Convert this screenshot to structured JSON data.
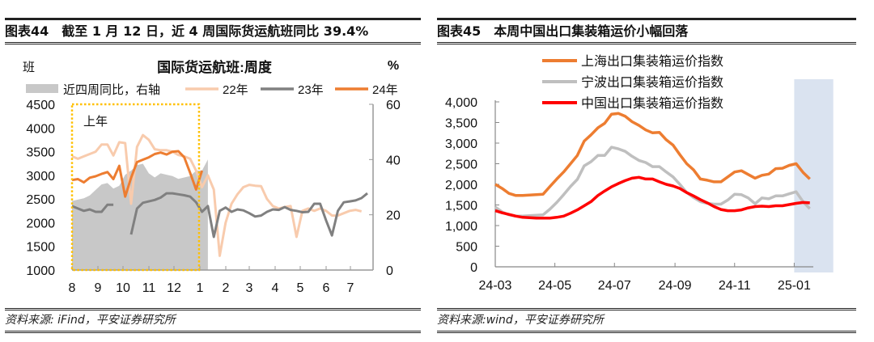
{
  "left_panel": {
    "figure_no": "图表44",
    "heading": "截至 1 月 12 日，近 4 周国际货运航班同比 39.4%",
    "source": "资料来源: iFind，平安证券研究所"
  },
  "right_panel": {
    "figure_no": "图表45",
    "heading": "本周中国出口集装箱运价小幅回落",
    "source": "资料来源:wind，平安证券研究所"
  },
  "chart_data": [
    {
      "type": "line",
      "title": "国际货运航班:周度",
      "ylabel": "班",
      "y2label": "%",
      "ylim": [
        1000,
        4500
      ],
      "y2lim": [
        0,
        60
      ],
      "yticks": [
        "4500",
        "4000",
        "3500",
        "3000",
        "2500",
        "2000",
        "1500",
        "1000"
      ],
      "y2ticks": [
        "60",
        "40",
        "20",
        "0"
      ],
      "xticks": [
        "8",
        "9",
        "10",
        "11",
        "12",
        "1",
        "2",
        "3",
        "4",
        "5",
        "6",
        "7"
      ],
      "x_unit": "week, starting from start of August",
      "annotation": "上年",
      "highlight_box": {
        "from_week": 0,
        "to_week": 21.5,
        "color": "#FFC000"
      },
      "series": [
        {
          "name": "近四周同比，右轴",
          "kind": "area",
          "axis": "right",
          "color": "#C8C8C8",
          "values": [
            25,
            25.5,
            26,
            27,
            29,
            31,
            31.5,
            29.5,
            30.5,
            34.5,
            36,
            38,
            38.5,
            35,
            33.5,
            35,
            34.5,
            34,
            33,
            33.5,
            34,
            36,
            36,
            40
          ]
        },
        {
          "name": "22年",
          "color": "#F8CBAD",
          "values": [
            3400,
            3350,
            3400,
            3450,
            3500,
            3650,
            3650,
            3420,
            3700,
            3680,
            2400,
            3600,
            3850,
            3750,
            3550,
            3530,
            3530,
            3500,
            3430,
            3400,
            3350,
            3100,
            2750,
            3000,
            2700,
            1300,
            2000,
            2400,
            2600,
            2750,
            2800,
            2780,
            2770,
            2500,
            2350,
            2300,
            2330,
            2350,
            1700,
            2250,
            2300,
            2250,
            2300,
            2250,
            2150,
            2150,
            2200,
            2250,
            2270,
            2240
          ]
        },
        {
          "name": "23年",
          "color": "#808080",
          "values": [
            2350,
            2300,
            2250,
            2280,
            2230,
            2230,
            2380,
            2380,
            null,
            null,
            1750,
            2300,
            2420,
            2450,
            2480,
            2530,
            2620,
            2620,
            2600,
            2580,
            2550,
            2430,
            2230,
            2350,
            1700,
            2250,
            2320,
            2230,
            2280,
            2260,
            2200,
            2130,
            2150,
            2230,
            2280,
            2270,
            2330,
            2270,
            2250,
            2220,
            2230,
            2400,
            2400,
            2050,
            1730,
            2250,
            2430,
            2450,
            2470,
            2520,
            2620
          ]
        },
        {
          "name": "24年",
          "color": "#ED7D31",
          "values": [
            2900,
            2920,
            2850,
            2950,
            2980,
            3030,
            3070,
            2920,
            3200,
            2550,
            2950,
            3280,
            3330,
            3380,
            3450,
            3480,
            3440,
            3500,
            3510,
            3380,
            3050,
            2700,
            3100
          ]
        }
      ],
      "legend": "top"
    },
    {
      "type": "line",
      "ylim": [
        0,
        4000
      ],
      "yticks": [
        "4,000",
        "3,500",
        "3,000",
        "2,500",
        "2,000",
        "1,500",
        "1,000",
        "500",
        "0"
      ],
      "xticks": [
        "24-03",
        "24-05",
        "24-07",
        "24-09",
        "24-11",
        "25-01"
      ],
      "shaded_region": {
        "from": "2025-01-01",
        "to": "2025-02-10",
        "color": "#DAE3F0"
      },
      "x": [
        "2024-03-01",
        "2024-03-08",
        "2024-03-15",
        "2024-03-22",
        "2024-03-29",
        "2024-04-05",
        "2024-04-12",
        "2024-04-19",
        "2024-04-26",
        "2024-05-03",
        "2024-05-10",
        "2024-05-17",
        "2024-05-24",
        "2024-05-31",
        "2024-06-07",
        "2024-06-14",
        "2024-06-21",
        "2024-06-28",
        "2024-07-05",
        "2024-07-12",
        "2024-07-19",
        "2024-07-26",
        "2024-08-02",
        "2024-08-09",
        "2024-08-16",
        "2024-08-23",
        "2024-08-30",
        "2024-09-06",
        "2024-09-13",
        "2024-09-20",
        "2024-09-27",
        "2024-10-04",
        "2024-10-11",
        "2024-10-18",
        "2024-10-25",
        "2024-11-01",
        "2024-11-08",
        "2024-11-15",
        "2024-11-22",
        "2024-11-29",
        "2024-12-06",
        "2024-12-13",
        "2024-12-20",
        "2024-12-27",
        "2025-01-03",
        "2025-01-10",
        "2025-01-17"
      ],
      "series": [
        {
          "name": "上海出口集装箱运价指数",
          "color": "#ED7D31",
          "values": [
            2000,
            1900,
            1780,
            1730,
            1730,
            1740,
            1750,
            1760,
            1950,
            2130,
            2300,
            2500,
            2700,
            3050,
            3200,
            3370,
            3480,
            3700,
            3720,
            3650,
            3520,
            3430,
            3320,
            3250,
            3260,
            3080,
            2950,
            2720,
            2500,
            2350,
            2130,
            2100,
            2060,
            2060,
            2180,
            2300,
            2330,
            2240,
            2150,
            2220,
            2250,
            2380,
            2390,
            2460,
            2500,
            2290,
            2130
          ]
        },
        {
          "name": "宁波出口集装箱运价指数",
          "color": "#BFBFBF",
          "values": [
            1450,
            1330,
            1260,
            1230,
            1230,
            1240,
            1250,
            1260,
            1400,
            1560,
            1750,
            1950,
            2120,
            2450,
            2550,
            2700,
            2700,
            2900,
            2860,
            2800,
            2680,
            2580,
            2530,
            2430,
            2430,
            2300,
            2180,
            2000,
            1800,
            1680,
            1580,
            1540,
            1520,
            1520,
            1620,
            1760,
            1750,
            1670,
            1530,
            1670,
            1650,
            1720,
            1720,
            1770,
            1820,
            1580,
            1410
          ]
        },
        {
          "name": "中国出口集装箱运价指数",
          "color": "#FF0000",
          "values": [
            1360,
            1310,
            1270,
            1230,
            1200,
            1190,
            1180,
            1180,
            1180,
            1200,
            1230,
            1300,
            1380,
            1480,
            1580,
            1730,
            1840,
            1940,
            2020,
            2090,
            2150,
            2170,
            2130,
            2130,
            2060,
            2000,
            1960,
            1900,
            1800,
            1720,
            1630,
            1550,
            1460,
            1390,
            1360,
            1360,
            1380,
            1430,
            1460,
            1470,
            1460,
            1480,
            1480,
            1510,
            1540,
            1560,
            1550
          ]
        }
      ],
      "legend": "top"
    }
  ]
}
